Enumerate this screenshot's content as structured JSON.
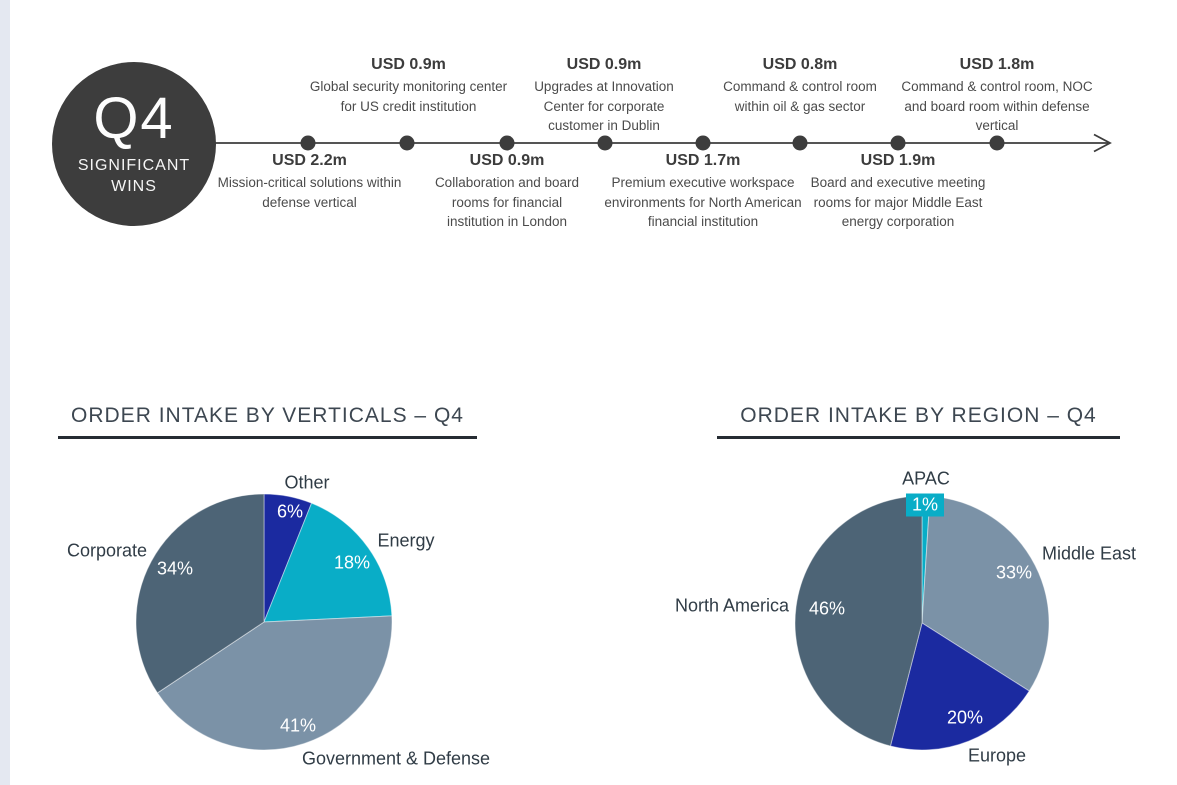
{
  "timeline": {
    "badge": {
      "quarter": "Q4",
      "subtitle": "SIGNIFICANT WINS"
    },
    "top_milestones": [
      {
        "amount": "USD 0.9m",
        "desc": "Global security monitoring center for US credit institution"
      },
      {
        "amount": "USD 0.9m",
        "desc": "Upgrades at Innovation Center for corporate customer in Dublin"
      },
      {
        "amount": "USD 0.8m",
        "desc": "Command & control room within oil & gas sector"
      },
      {
        "amount": "USD 1.8m",
        "desc": "Command & control room, NOC and board room within defense vertical"
      }
    ],
    "bottom_milestones": [
      {
        "amount": "USD 2.2m",
        "desc": "Mission-critical solutions within defense vertical"
      },
      {
        "amount": "USD 0.9m",
        "desc": "Collaboration and board rooms for financial institution in London"
      },
      {
        "amount": "USD 1.7m",
        "desc": "Premium executive workspace environments for North American financial institution"
      },
      {
        "amount": "USD 1.9m",
        "desc": "Board and executive meeting rooms for major Middle East energy corporation"
      }
    ],
    "line_color": "#3d3d3d"
  },
  "chart_data": [
    {
      "type": "pie",
      "title": "ORDER INTAKE BY VERTICALS – Q4",
      "direction": "clockwise",
      "start_angle_deg": 0,
      "legend_position": "outside-labels",
      "slices": [
        {
          "label": "Other",
          "value": 6,
          "pct": "6%",
          "color": "#1b2aa0"
        },
        {
          "label": "Energy",
          "value": 18,
          "pct": "18%",
          "color": "#09adc7"
        },
        {
          "label": "Government & Defense",
          "value": 41,
          "pct": "41%",
          "color": "#7b92a7"
        },
        {
          "label": "Corporate",
          "value": 34,
          "pct": "34%",
          "color": "#4d6476"
        }
      ]
    },
    {
      "type": "pie",
      "title": "ORDER INTAKE BY REGION – Q4",
      "direction": "clockwise",
      "start_angle_deg": 0,
      "legend_position": "outside-labels",
      "slices": [
        {
          "label": "APAC",
          "value": 1,
          "pct": "1%",
          "color": "#09adc7"
        },
        {
          "label": "Middle East",
          "value": 33,
          "pct": "33%",
          "color": "#7b92a7"
        },
        {
          "label": "Europe",
          "value": 20,
          "pct": "20%",
          "color": "#1b2aa0"
        },
        {
          "label": "North America",
          "value": 46,
          "pct": "46%",
          "color": "#4d6476"
        }
      ]
    }
  ],
  "colors": {
    "charcoal": "#3d3d3d",
    "navy": "#1b2aa0",
    "cyan": "#09adc7",
    "slate_light": "#7b92a7",
    "slate_dark": "#4d6476",
    "title_text": "#3d4751",
    "left_strip": "#e4e8f1"
  }
}
